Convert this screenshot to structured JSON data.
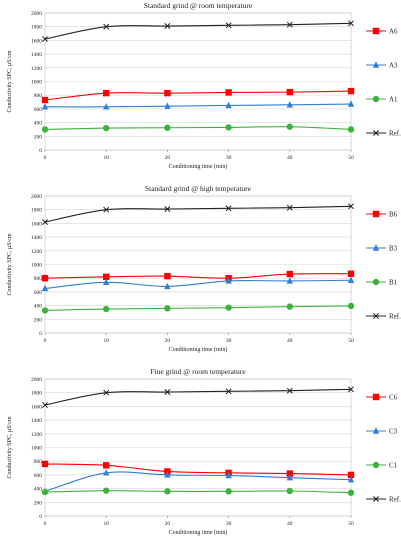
{
  "colors": {
    "A6": "#ff0000",
    "A3": "#2f7fd6",
    "A1": "#3db33d",
    "Ref": "#222222"
  },
  "chart_data": [
    {
      "type": "line",
      "title": "Standard grind @ room temperature",
      "xlabel": "Conditioning time (min)",
      "ylabel": "Conductivity SPC, μS/cm",
      "xticks": [
        0,
        10,
        20,
        30,
        40,
        50
      ],
      "yticks": [
        0,
        200,
        400,
        600,
        800,
        1000,
        1200,
        1400,
        1600,
        1800,
        2000
      ],
      "xlim": [
        0,
        50
      ],
      "ylim": [
        0,
        2000
      ],
      "grid": true,
      "legend_position": "right",
      "x": [
        0,
        10,
        20,
        30,
        40,
        50
      ],
      "series": [
        {
          "name": "A6",
          "marker": "square",
          "values": [
            730,
            830,
            830,
            840,
            845,
            860
          ]
        },
        {
          "name": "A3",
          "marker": "triangle",
          "values": [
            630,
            630,
            640,
            650,
            660,
            670
          ]
        },
        {
          "name": "A1",
          "marker": "circle",
          "values": [
            300,
            320,
            325,
            330,
            340,
            300
          ]
        },
        {
          "name": "Ref.",
          "marker": "x",
          "values": [
            1620,
            1800,
            1810,
            1820,
            1830,
            1850
          ]
        }
      ]
    },
    {
      "type": "line",
      "title": "Standard grind @ high temperature",
      "xlabel": "Conditioning time (min)",
      "ylabel": "Conductivity SPC, μS/cm",
      "xticks": [
        0,
        10,
        20,
        30,
        40,
        50
      ],
      "yticks": [
        0,
        200,
        400,
        600,
        800,
        1000,
        1200,
        1400,
        1600,
        1800,
        2000
      ],
      "xlim": [
        0,
        50
      ],
      "ylim": [
        0,
        2000
      ],
      "grid": true,
      "legend_position": "right",
      "x": [
        0,
        10,
        20,
        30,
        40,
        50
      ],
      "series": [
        {
          "name": "B6",
          "marker": "square",
          "values": [
            800,
            820,
            830,
            800,
            860,
            865
          ]
        },
        {
          "name": "B3",
          "marker": "triangle",
          "values": [
            650,
            740,
            680,
            760,
            760,
            770
          ]
        },
        {
          "name": "B1",
          "marker": "circle",
          "values": [
            330,
            350,
            360,
            370,
            385,
            395
          ]
        },
        {
          "name": "Ref.",
          "marker": "x",
          "values": [
            1620,
            1800,
            1810,
            1820,
            1830,
            1850
          ]
        }
      ]
    },
    {
      "type": "line",
      "title": "Fine grind @ room temperature",
      "xlabel": "Conditioning time (min)",
      "ylabel": "Conductivity SPC, μS/cm",
      "xticks": [
        0,
        10,
        20,
        30,
        40,
        50
      ],
      "yticks": [
        0,
        200,
        400,
        600,
        800,
        1000,
        1200,
        1400,
        1600,
        1800,
        2000
      ],
      "xlim": [
        0,
        50
      ],
      "ylim": [
        0,
        2000
      ],
      "grid": true,
      "legend_position": "right",
      "x": [
        0,
        10,
        20,
        30,
        40,
        50
      ],
      "series": [
        {
          "name": "C6",
          "marker": "square",
          "values": [
            760,
            740,
            650,
            630,
            620,
            600
          ]
        },
        {
          "name": "C3",
          "marker": "triangle",
          "values": [
            360,
            630,
            600,
            590,
            560,
            530
          ]
        },
        {
          "name": "C1",
          "marker": "circle",
          "values": [
            350,
            370,
            360,
            360,
            365,
            340
          ]
        },
        {
          "name": "Ref.",
          "marker": "x",
          "values": [
            1620,
            1800,
            1810,
            1820,
            1830,
            1850
          ]
        }
      ]
    }
  ]
}
